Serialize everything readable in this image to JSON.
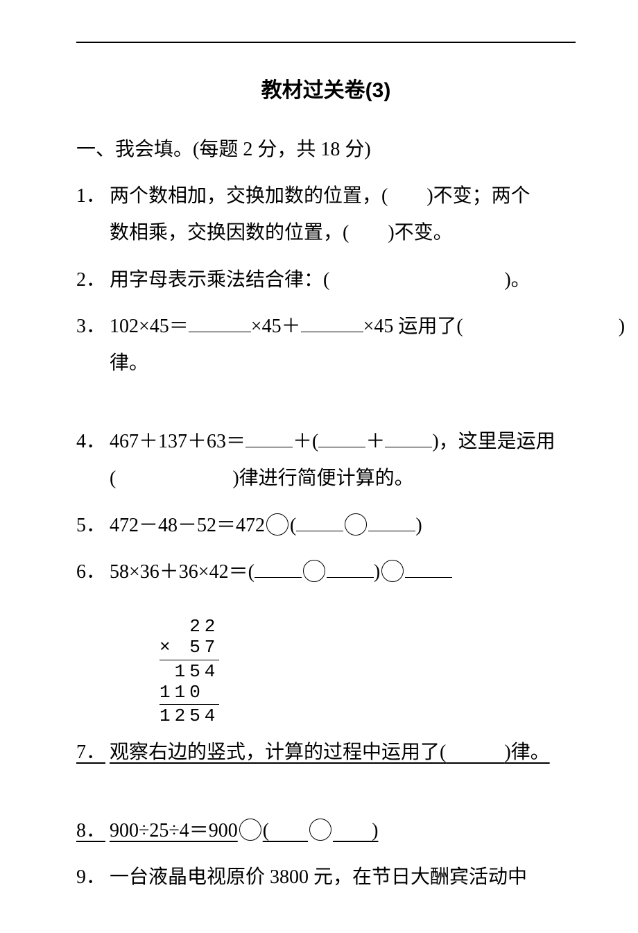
{
  "title": "教材过关卷(3)",
  "section1": {
    "heading": "一、我会填。(每题 2 分，共 18 分)",
    "q1": {
      "num": "1．",
      "line1_a": "两个数相加，交换加数的位置，(",
      "line1_b": ")不变；两个",
      "line2": "数相乘，交换因数的位置，(　　)不变。"
    },
    "q2": {
      "num": "2．",
      "text_a": "用字母表示乘法结合律：(",
      "text_b": ")。"
    },
    "q3": {
      "num": "3．",
      "text_a": "102×45＝",
      "text_b": "×45＋",
      "text_c": "×45 运用了(",
      "text_d": ")律。"
    },
    "q4": {
      "num": "4．",
      "line1_a": "467＋137＋63＝",
      "line1_b": "＋(",
      "line1_c": "＋",
      "line1_d": ")，这里是运用",
      "line2_a": "(",
      "line2_b": ")律进行简便计算的。"
    },
    "q5": {
      "num": "5．",
      "text_a": "472－48－52＝472",
      "text_b": "(",
      "text_c": ")"
    },
    "q6": {
      "num": "6．",
      "text_a": "58×36＋36×42＝(",
      "text_b": ")"
    },
    "calc": {
      "r1": "  22",
      "r2": "× 57",
      "r3": " 154",
      "r4": "110 ",
      "r5": "1254"
    },
    "q7": {
      "num": "7．",
      "text_a": "观察右边的竖式，计算的过程中运用了(",
      "text_b": ")律。"
    },
    "q8": {
      "num": "8．",
      "text_a": "900÷25÷4＝900",
      "text_b": "(",
      "text_c": ")"
    },
    "q9": {
      "num": "9．",
      "text": "一台液晶电视原价 3800 元，在节日大酬宾活动中"
    }
  }
}
